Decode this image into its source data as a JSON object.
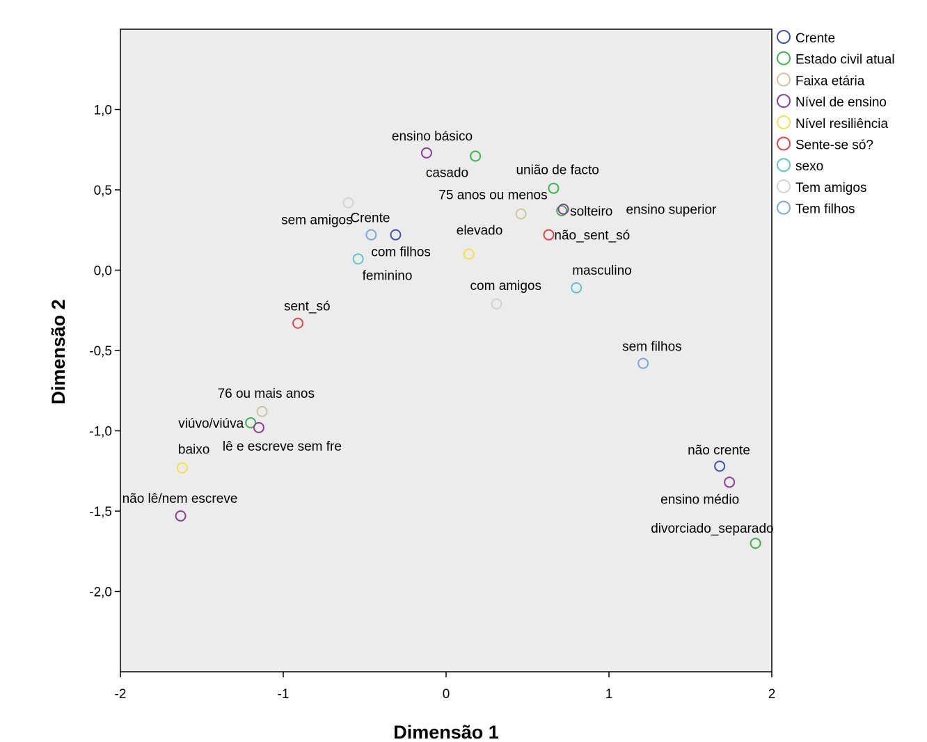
{
  "chart_data": {
    "type": "scatter",
    "xlabel": "Dimensão 1",
    "ylabel": "Dimensão 2",
    "xlim": [
      -2,
      2
    ],
    "ylim": [
      -2.5,
      1.5
    ],
    "x_ticks": [
      -2,
      -1,
      0,
      1,
      2
    ],
    "x_tick_labels": [
      "-2",
      "-1",
      "0",
      "1",
      "2"
    ],
    "y_ticks": [
      1.0,
      0.5,
      0.0,
      -0.5,
      -1.0,
      -1.5,
      -2.0
    ],
    "y_tick_labels": [
      "1,0",
      "0,5",
      "0,0",
      "-0,5",
      "-1,0",
      "-1,5",
      "-2,0"
    ],
    "grid": false,
    "legend_position": "right",
    "background": "#ececec",
    "series": [
      {
        "name": "Crente",
        "color": "#3a55b4",
        "points": [
          {
            "label": "Crente",
            "x": -0.31,
            "y": 0.22
          },
          {
            "label": "não crente",
            "x": 1.68,
            "y": -1.22
          }
        ]
      },
      {
        "name": "Estado civil atual",
        "color": "#3cb44b",
        "points": [
          {
            "label": "casado",
            "x": 0.18,
            "y": 0.71
          },
          {
            "label": "união de facto",
            "x": 0.66,
            "y": 0.51
          },
          {
            "label": "solteiro",
            "x": 0.71,
            "y": 0.37
          },
          {
            "label": "viúvo/viúva",
            "x": -1.2,
            "y": -0.95
          },
          {
            "label": "divorciado_separado",
            "x": 1.9,
            "y": -1.7
          }
        ]
      },
      {
        "name": "Faixa etária",
        "color": "#cfc59a",
        "points": [
          {
            "label": "75 anos ou menos",
            "x": 0.46,
            "y": 0.35
          },
          {
            "label": "76 ou mais anos",
            "x": -1.13,
            "y": -0.88
          }
        ]
      },
      {
        "name": "Nível de ensino",
        "color": "#8e3c9a",
        "points": [
          {
            "label": "ensino básico",
            "x": -0.12,
            "y": 0.73
          },
          {
            "label": "ensino superior",
            "x": 0.72,
            "y": 0.38
          },
          {
            "label": "lê e escreve sem fre",
            "x": -1.15,
            "y": -0.98
          },
          {
            "label": "não lê/nem escreve",
            "x": -1.63,
            "y": -1.53
          },
          {
            "label": "ensino médio",
            "x": 1.74,
            "y": -1.32
          }
        ]
      },
      {
        "name": "Nível resiliência",
        "color": "#f2e24a",
        "points": [
          {
            "label": "elevado",
            "x": 0.14,
            "y": 0.1
          },
          {
            "label": "baixo",
            "x": -1.62,
            "y": -1.23
          }
        ]
      },
      {
        "name": "Sente-se só?",
        "color": "#e8434a",
        "points": [
          {
            "label": "não_sent_só",
            "x": 0.63,
            "y": 0.22
          },
          {
            "label": "sent_só",
            "x": -0.91,
            "y": -0.33
          }
        ]
      },
      {
        "name": "sexo",
        "color": "#5cc7c9",
        "points": [
          {
            "label": "feminino",
            "x": -0.54,
            "y": 0.07
          },
          {
            "label": "masculino",
            "x": 0.8,
            "y": -0.11
          }
        ]
      },
      {
        "name": "Tem amigos",
        "color": "#d3d3d3",
        "points": [
          {
            "label": "sem amigos",
            "x": -0.6,
            "y": 0.42
          },
          {
            "label": "com amigos",
            "x": 0.31,
            "y": -0.21
          }
        ]
      },
      {
        "name": "Tem filhos",
        "color": "#7aa7d9",
        "points": [
          {
            "label": "com filhos",
            "x": -0.46,
            "y": 0.22
          },
          {
            "label": "sem filhos",
            "x": 1.21,
            "y": -0.58
          }
        ]
      }
    ]
  }
}
